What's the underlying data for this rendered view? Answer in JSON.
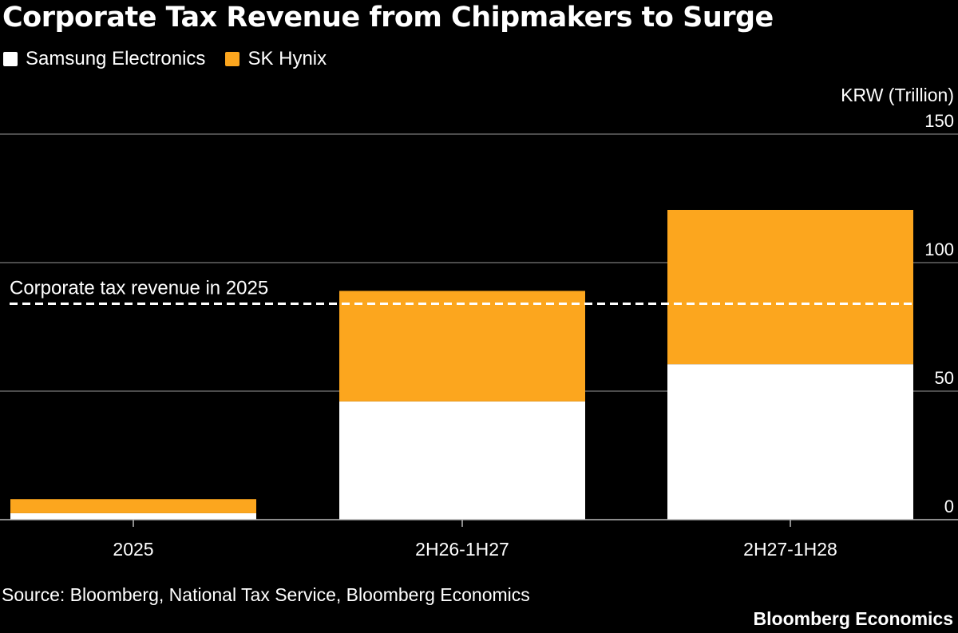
{
  "chart_data": {
    "type": "bar",
    "stacked": true,
    "title": "Corporate Tax Revenue from Chipmakers to Surge",
    "unit_label": "KRW (Trillion)",
    "categories": [
      "2025",
      "2H26-1H27",
      "2H27-1H28"
    ],
    "series": [
      {
        "name": "Samsung Electronics",
        "color": "#ffffff",
        "values": [
          2.5,
          46,
          60.5
        ]
      },
      {
        "name": "SK Hynix",
        "color": "#fca61e",
        "values": [
          5.5,
          43,
          60
        ]
      }
    ],
    "ylim": [
      0,
      150
    ],
    "yticks": [
      0,
      50,
      100,
      150
    ],
    "y_axis_position": "right",
    "grid": true,
    "legend_position": "top-left",
    "reference_line": {
      "label": "Corporate tax revenue in 2025",
      "value": 84,
      "style": "dashed"
    },
    "source": "Source: Bloomberg, National Tax Service, Bloomberg Economics",
    "brand": "Bloomberg Economics"
  }
}
